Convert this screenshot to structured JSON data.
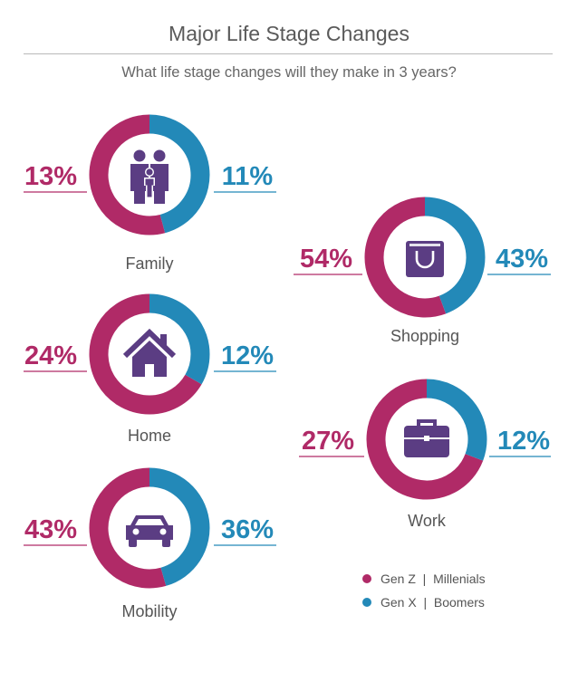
{
  "header": {
    "title": "Major Life Stage Changes",
    "subtitle": "What life stage changes will they make in 3 years?"
  },
  "colors": {
    "genz_millenials": "#b02a67",
    "genx_boomers": "#2389b8",
    "icon": "#5b3d83",
    "track": "#ffffff"
  },
  "legend": [
    {
      "label": "Gen Z  |  Millenials",
      "color": "#b02a67"
    },
    {
      "label": "Gen X  |  Boomers",
      "color": "#2389b8"
    }
  ],
  "chart_data": {
    "type": "pie",
    "variant": "donut",
    "title": "Major Life Stage Changes",
    "subtitle": "What life stage changes will they make in 3 years?",
    "series_names": [
      "Gen Z | Millenials",
      "Gen X | Boomers"
    ],
    "categories": [
      {
        "label": "Family",
        "icon": "family-icon",
        "left": "13%",
        "right": "11%",
        "left_value": 13,
        "right_value": 11
      },
      {
        "label": "Home",
        "icon": "house-icon",
        "left": "24%",
        "right": "12%",
        "left_value": 24,
        "right_value": 12
      },
      {
        "label": "Mobility",
        "icon": "car-icon",
        "left": "43%",
        "right": "36%",
        "left_value": 43,
        "right_value": 36
      },
      {
        "label": "Shopping",
        "icon": "shopping-bag-icon",
        "left": "54%",
        "right": "43%",
        "left_value": 54,
        "right_value": 43
      },
      {
        "label": "Work",
        "icon": "briefcase-icon",
        "left": "27%",
        "right": "12%",
        "left_value": 27,
        "right_value": 12
      }
    ]
  }
}
